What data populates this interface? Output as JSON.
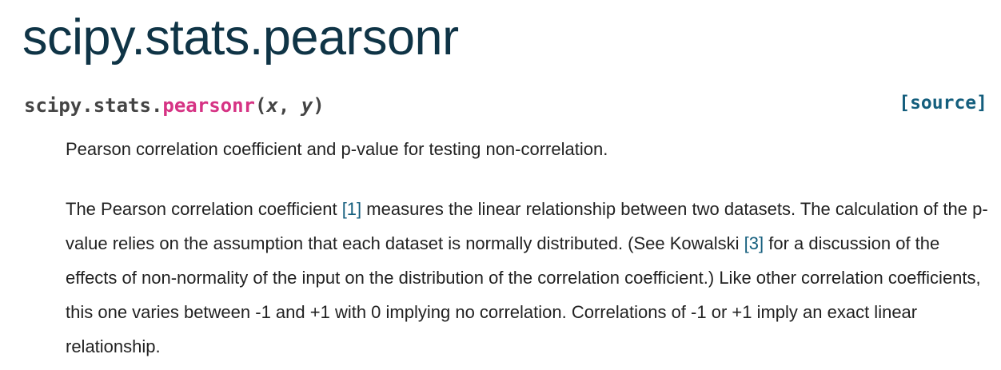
{
  "page_title": "scipy.stats.pearsonr",
  "signature": {
    "prefix": "scipy.stats.",
    "name": "pearsonr",
    "open_paren": "(",
    "param_x": "x",
    "separator": ", ",
    "param_y": "y",
    "close_paren": ")",
    "source_label": "[source]"
  },
  "summary": "Pearson correlation coefficient and p-value for testing non-correlation.",
  "description": {
    "seg1": "The Pearson correlation coefficient ",
    "ref1": "[1]",
    "seg2": " measures the linear relationship between two datasets. The calculation of the p-value relies on the assumption that each dataset is normally distributed. (See Kowalski ",
    "ref3": "[3]",
    "seg3": " for a discussion of the effects of non-normality of the input on the distribution of the correlation coefficient.) Like other correlation coefficients, this one varies between -1 and +1 with 0 implying no correlation. Correlations of -1 or +1 imply an exact linear relationship."
  },
  "colors": {
    "title": "#0f3446",
    "function_name": "#d63384",
    "link": "#145e7d",
    "text": "#222222"
  }
}
